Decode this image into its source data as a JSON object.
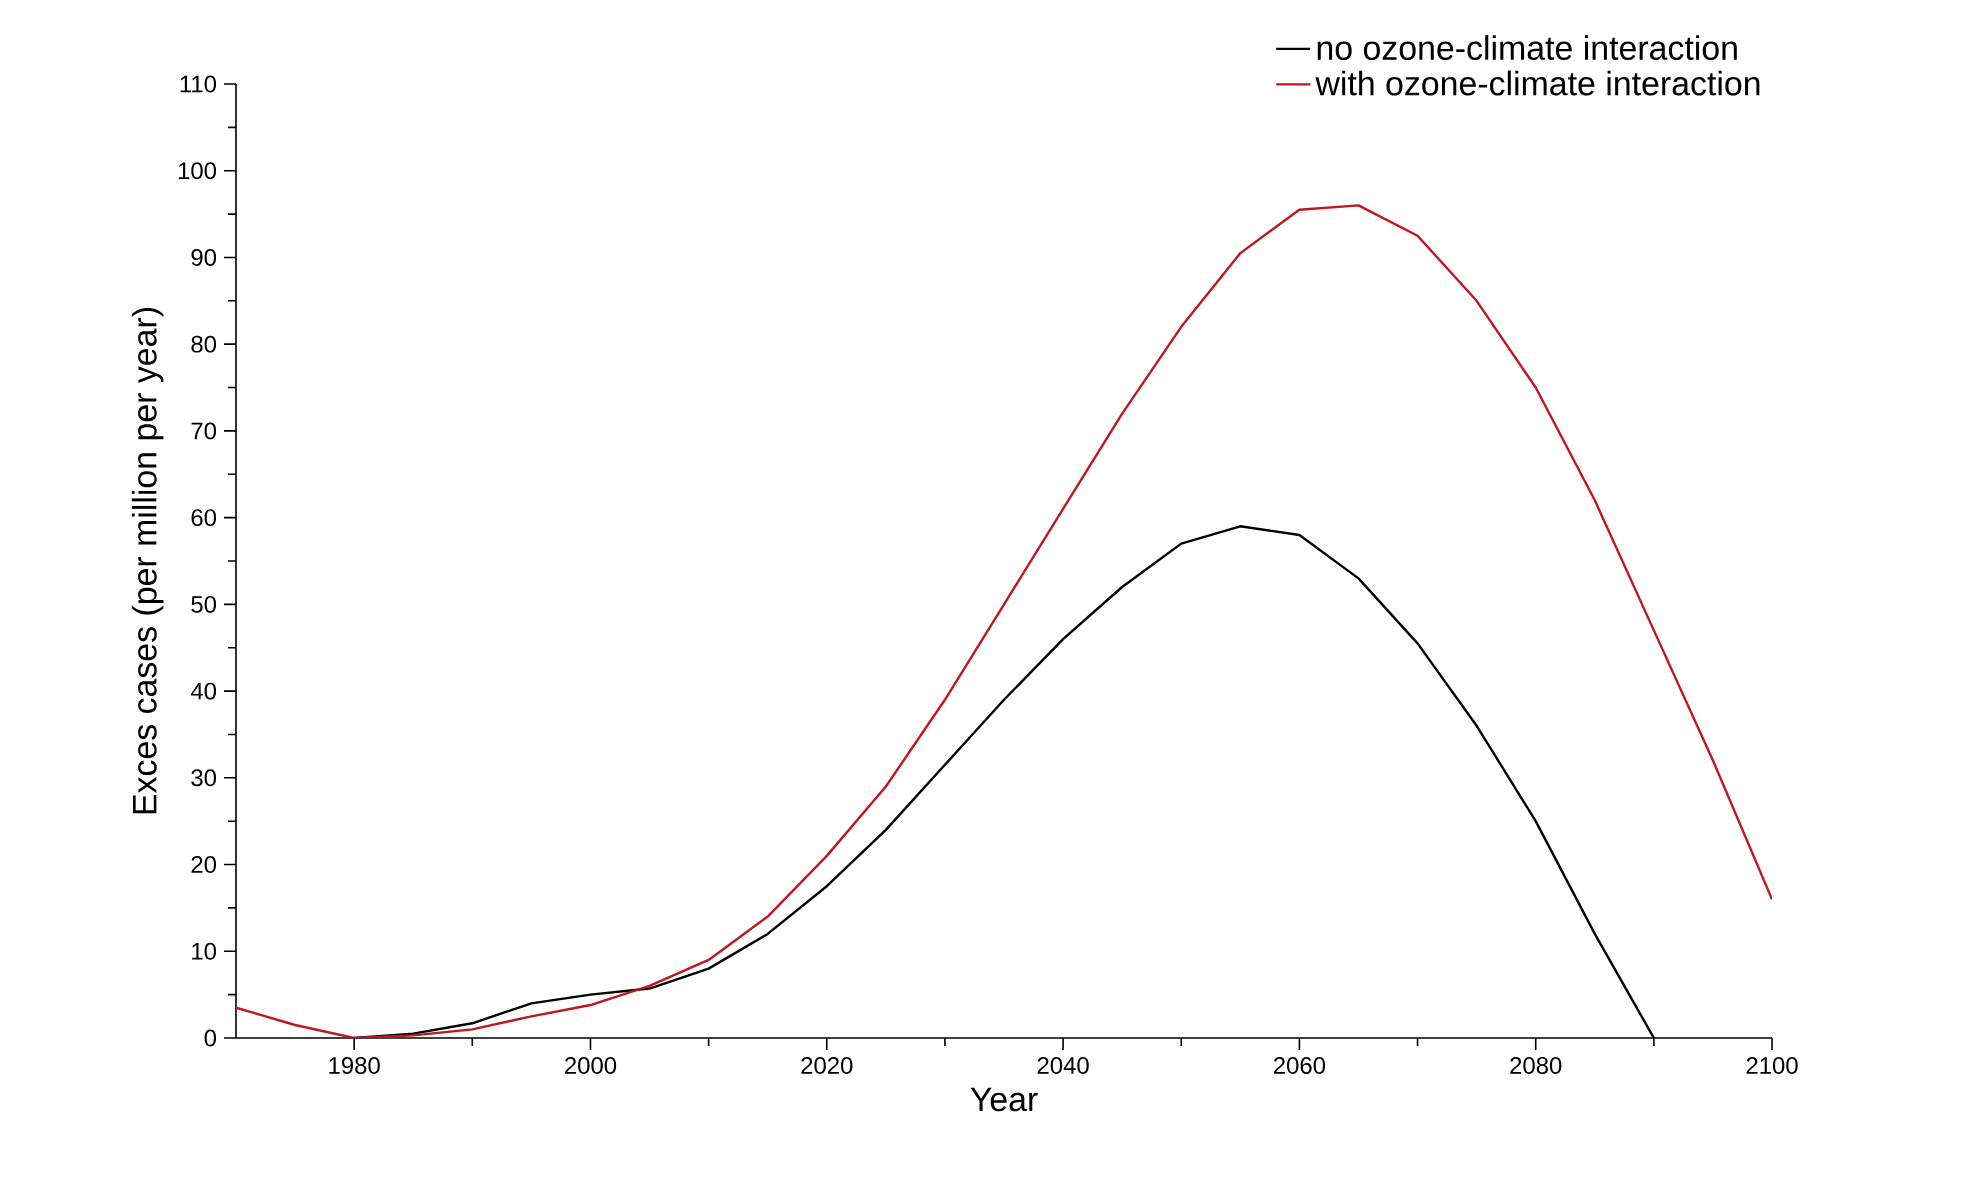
{
  "chart_data": {
    "type": "line",
    "xlabel": "Year",
    "ylabel": "Exces cases (per million per year)",
    "x": [
      1970,
      1975,
      1980,
      1985,
      1990,
      1995,
      2000,
      2005,
      2010,
      2015,
      2020,
      2025,
      2030,
      2035,
      2040,
      2045,
      2050,
      2055,
      2060,
      2065,
      2070,
      2075,
      2080,
      2085,
      2090,
      2095,
      2100
    ],
    "series": [
      {
        "name": "no ozone-climate interaction",
        "color": "#000000",
        "values": [
          null,
          null,
          0,
          0.5,
          1.7,
          4,
          5,
          5.7,
          8,
          12,
          17.5,
          24,
          31.5,
          39,
          46,
          52,
          57,
          59,
          58,
          53,
          45.5,
          36,
          25,
          12,
          0,
          null,
          null
        ]
      },
      {
        "name": "with ozone-climate interaction",
        "color": "#c0161e",
        "values": [
          3.5,
          1.5,
          0,
          0.3,
          1,
          2.5,
          3.8,
          6,
          9,
          14,
          21,
          29,
          39,
          50,
          61,
          72,
          82,
          90.5,
          95.5,
          96,
          92.5,
          85,
          75,
          62,
          47,
          32,
          16
        ]
      }
    ],
    "xlim": [
      1970,
      2100
    ],
    "xticks": [
      1980,
      2000,
      2020,
      2040,
      2060,
      2080,
      2100
    ],
    "ylim": [
      0,
      110
    ],
    "yticks": [
      0,
      10,
      20,
      30,
      40,
      50,
      60,
      70,
      80,
      90,
      100,
      110
    ],
    "grid": false,
    "legend": "top right",
    "marker": "none",
    "line_style": "solid"
  }
}
